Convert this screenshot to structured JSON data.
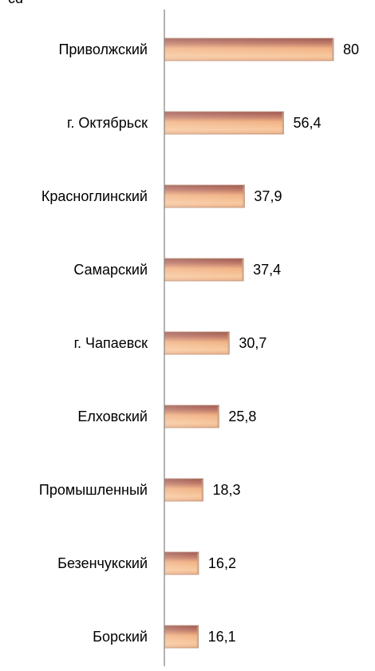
{
  "chart_data": {
    "type": "bar",
    "orientation": "horizontal",
    "title": "",
    "xlabel": "",
    "ylabel": "",
    "categories": [
      "Приволжский",
      "г. Октябрьск",
      "Красноглинский",
      "Самарский",
      "г. Чапаевск",
      "Елховский",
      "Промышленный",
      "Безенчукский",
      "Борский"
    ],
    "values": [
      80,
      56.4,
      37.9,
      37.4,
      30.7,
      25.8,
      18.3,
      16.2,
      16.1
    ],
    "value_labels": [
      "80",
      "56,4",
      "37,9",
      "37,4",
      "30,7",
      "25,8",
      "18,3",
      "16,2",
      "16,1"
    ],
    "xlim": [
      0,
      80
    ],
    "grid": false,
    "legend": "none",
    "colors": {
      "bar_light": "#f8c9a0",
      "bar_mid": "#f1b284",
      "bar_dark": "#b56a5c",
      "bar_top": "#9e5a52",
      "axis": "#808080",
      "text": "#000000"
    }
  }
}
